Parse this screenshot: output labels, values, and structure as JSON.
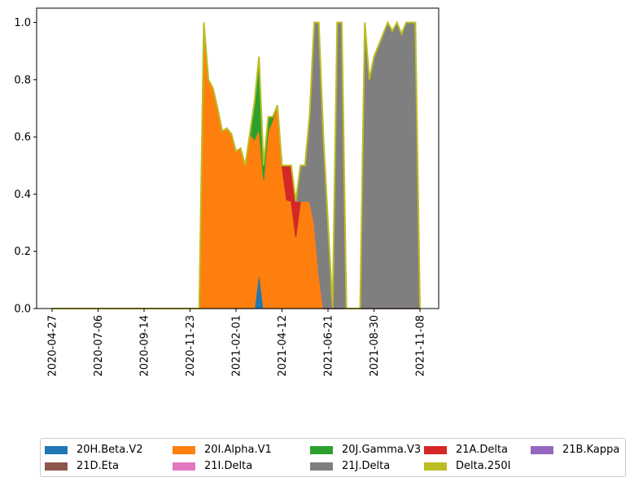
{
  "chart_data": {
    "type": "area",
    "stacked": true,
    "xlabel": "",
    "ylabel": "",
    "x_dates": [
      "2020-04-27",
      "2020-05-04",
      "2020-05-11",
      "2020-05-18",
      "2020-05-25",
      "2020-06-01",
      "2020-06-08",
      "2020-06-15",
      "2020-06-22",
      "2020-06-29",
      "2020-07-06",
      "2020-07-13",
      "2020-07-20",
      "2020-07-27",
      "2020-08-03",
      "2020-08-10",
      "2020-08-17",
      "2020-08-24",
      "2020-08-31",
      "2020-09-07",
      "2020-09-14",
      "2020-09-21",
      "2020-09-28",
      "2020-10-05",
      "2020-10-12",
      "2020-10-19",
      "2020-10-26",
      "2020-11-02",
      "2020-11-09",
      "2020-11-16",
      "2020-11-23",
      "2020-11-30",
      "2020-12-07",
      "2020-12-14",
      "2020-12-21",
      "2020-12-28",
      "2021-01-04",
      "2021-01-11",
      "2021-01-18",
      "2021-01-25",
      "2021-02-01",
      "2021-02-08",
      "2021-02-15",
      "2021-02-22",
      "2021-03-01",
      "2021-03-08",
      "2021-03-15",
      "2021-03-22",
      "2021-03-29",
      "2021-04-05",
      "2021-04-12",
      "2021-04-19",
      "2021-04-26",
      "2021-05-03",
      "2021-05-10",
      "2021-05-17",
      "2021-05-24",
      "2021-05-31",
      "2021-06-07",
      "2021-06-14",
      "2021-06-21",
      "2021-06-28",
      "2021-07-05",
      "2021-07-12",
      "2021-07-19",
      "2021-07-26",
      "2021-08-02",
      "2021-08-09",
      "2021-08-16",
      "2021-08-23",
      "2021-08-30",
      "2021-09-06",
      "2021-09-13",
      "2021-09-20",
      "2021-09-27",
      "2021-10-04",
      "2021-10-11",
      "2021-10-18",
      "2021-10-25",
      "2021-11-01",
      "2021-11-08"
    ],
    "series": [
      {
        "name": "20H.Beta.V2",
        "color": "#1f77b4",
        "values": [
          0,
          0,
          0,
          0,
          0,
          0,
          0,
          0,
          0,
          0,
          0,
          0,
          0,
          0,
          0,
          0,
          0,
          0,
          0,
          0,
          0,
          0,
          0,
          0,
          0,
          0,
          0,
          0,
          0,
          0,
          0,
          0,
          0,
          0,
          0,
          0,
          0,
          0,
          0,
          0,
          0,
          0,
          0,
          0,
          0,
          0.13,
          0,
          0,
          0,
          0,
          0,
          0,
          0,
          0,
          0,
          0,
          0,
          0,
          0,
          0,
          0,
          0,
          0,
          0,
          0,
          0,
          0,
          0,
          0,
          0,
          0,
          0,
          0,
          0,
          0,
          0,
          0,
          0,
          0,
          0,
          0
        ]
      },
      {
        "name": "20I.Alpha.V1",
        "color": "#ff7f0e",
        "values": [
          0,
          0,
          0,
          0,
          0,
          0,
          0,
          0,
          0,
          0,
          0,
          0,
          0,
          0,
          0,
          0,
          0,
          0,
          0,
          0,
          0,
          0,
          0,
          0,
          0,
          0,
          0,
          0,
          0,
          0,
          0,
          0,
          0,
          1.0,
          0.8,
          0.77,
          0.7,
          0.62,
          0.63,
          0.61,
          0.55,
          0.56,
          0.5,
          0.61,
          0.59,
          0.5,
          0.45,
          0.62,
          0.66,
          0.71,
          0.5,
          0.38,
          0.375,
          0.25,
          0.375,
          0.375,
          0.375,
          0.3,
          0.125,
          0,
          0,
          0,
          0,
          0,
          0,
          0,
          0,
          0,
          0,
          0,
          0,
          0,
          0,
          0,
          0,
          0,
          0,
          0,
          0,
          0,
          0
        ]
      },
      {
        "name": "20J.Gamma.V3",
        "color": "#2ca02c",
        "values": [
          0,
          0,
          0,
          0,
          0,
          0,
          0,
          0,
          0,
          0,
          0,
          0,
          0,
          0,
          0,
          0,
          0,
          0,
          0,
          0,
          0,
          0,
          0,
          0,
          0,
          0,
          0,
          0,
          0,
          0,
          0,
          0,
          0,
          0,
          0,
          0,
          0,
          0,
          0,
          0,
          0,
          0,
          0,
          0,
          0.13,
          0.25,
          0.05,
          0.05,
          0.01,
          0,
          0,
          0,
          0,
          0,
          0,
          0,
          0,
          0,
          0,
          0,
          0,
          0,
          0,
          0,
          0,
          0,
          0,
          0,
          0,
          0,
          0,
          0,
          0,
          0,
          0,
          0,
          0,
          0,
          0,
          0,
          0
        ]
      },
      {
        "name": "21A.Delta",
        "color": "#d62728",
        "values": [
          0,
          0,
          0,
          0,
          0,
          0,
          0,
          0,
          0,
          0,
          0,
          0,
          0,
          0,
          0,
          0,
          0,
          0,
          0,
          0,
          0,
          0,
          0,
          0,
          0,
          0,
          0,
          0,
          0,
          0,
          0,
          0,
          0,
          0,
          0,
          0,
          0,
          0,
          0,
          0,
          0,
          0,
          0,
          0,
          0,
          0,
          0,
          0,
          0,
          0,
          0.0,
          0.12,
          0.125,
          0.125,
          0,
          0,
          0,
          0,
          0,
          0,
          0,
          0,
          0,
          0,
          0,
          0,
          0,
          0,
          0,
          0,
          0,
          0,
          0,
          0,
          0,
          0,
          0,
          0,
          0,
          0,
          0
        ]
      },
      {
        "name": "21B.Kappa",
        "color": "#9467bd",
        "values": [
          0,
          0,
          0,
          0,
          0,
          0,
          0,
          0,
          0,
          0,
          0,
          0,
          0,
          0,
          0,
          0,
          0,
          0,
          0,
          0,
          0,
          0,
          0,
          0,
          0,
          0,
          0,
          0,
          0,
          0,
          0,
          0,
          0,
          0,
          0,
          0,
          0,
          0,
          0,
          0,
          0,
          0,
          0,
          0,
          0,
          0,
          0,
          0,
          0,
          0,
          0.0,
          0.0,
          0.0,
          0.0,
          0,
          0,
          0,
          0,
          0,
          0,
          0,
          0,
          0,
          0,
          0,
          0,
          0,
          0,
          0,
          0,
          0,
          0,
          0,
          0,
          0,
          0,
          0,
          0,
          0,
          0,
          0
        ]
      },
      {
        "name": "21D.Eta",
        "color": "#8c564b",
        "values": [
          0,
          0,
          0,
          0,
          0,
          0,
          0,
          0,
          0,
          0,
          0,
          0,
          0,
          0,
          0,
          0,
          0,
          0,
          0,
          0,
          0,
          0,
          0,
          0,
          0,
          0,
          0,
          0,
          0,
          0,
          0,
          0,
          0,
          0,
          0,
          0,
          0,
          0,
          0,
          0,
          0,
          0,
          0,
          0,
          0,
          0,
          0,
          0,
          0,
          0,
          0,
          0,
          0,
          0,
          0,
          0,
          0,
          0,
          0,
          0,
          0,
          0,
          0,
          0,
          0,
          0,
          0,
          0,
          0,
          0,
          0,
          0,
          0,
          0,
          0,
          0,
          0,
          0,
          0,
          0,
          0
        ]
      },
      {
        "name": "21I.Delta",
        "color": "#e377c2",
        "values": [
          0,
          0,
          0,
          0,
          0,
          0,
          0,
          0,
          0,
          0,
          0,
          0,
          0,
          0,
          0,
          0,
          0,
          0,
          0,
          0,
          0,
          0,
          0,
          0,
          0,
          0,
          0,
          0,
          0,
          0,
          0,
          0,
          0,
          0,
          0,
          0,
          0,
          0,
          0,
          0,
          0,
          0,
          0,
          0,
          0,
          0,
          0,
          0,
          0,
          0,
          0,
          0,
          0,
          0,
          0,
          0,
          0,
          0,
          0,
          0,
          0,
          0,
          0,
          0,
          0,
          0,
          0,
          0,
          0,
          0,
          0,
          0,
          0,
          0,
          0,
          0,
          0,
          0,
          0,
          0,
          0
        ]
      },
      {
        "name": "21J.Delta",
        "color": "#7f7f7f",
        "values": [
          0,
          0,
          0,
          0,
          0,
          0,
          0,
          0,
          0,
          0,
          0,
          0,
          0,
          0,
          0,
          0,
          0,
          0,
          0,
          0,
          0,
          0,
          0,
          0,
          0,
          0,
          0,
          0,
          0,
          0,
          0,
          0,
          0,
          0,
          0,
          0,
          0,
          0,
          0,
          0,
          0,
          0,
          0,
          0,
          0,
          0,
          0,
          0,
          0,
          0,
          0,
          0,
          0,
          0,
          0.125,
          0.125,
          0.3,
          0.7,
          0.875,
          0.6,
          0.3,
          0,
          1.0,
          1.0,
          0,
          0,
          0,
          0,
          1.0,
          0.8,
          0.88,
          0.92,
          0.96,
          1.0,
          0.97,
          1.0,
          0.96,
          1.0,
          1.0,
          1.0,
          0
        ]
      },
      {
        "name": "Delta.250I",
        "color": "#bcbd22",
        "values": [
          0,
          0,
          0,
          0,
          0,
          0,
          0,
          0,
          0,
          0,
          0,
          0,
          0,
          0,
          0,
          0,
          0,
          0,
          0,
          0,
          0,
          0,
          0,
          0,
          0,
          0,
          0,
          0,
          0,
          0,
          0,
          0,
          0,
          0,
          0,
          0,
          0,
          0,
          0,
          0,
          0,
          0,
          0,
          0,
          0,
          0,
          0,
          0,
          0,
          0,
          0,
          0,
          0,
          0,
          0,
          0,
          0,
          0,
          0,
          0,
          0,
          0,
          0,
          0,
          0,
          0,
          0,
          0,
          0,
          0,
          0,
          0,
          0,
          0,
          0,
          0,
          0,
          0,
          0,
          0,
          0
        ]
      }
    ],
    "x_ticks": [
      "2020-04-27",
      "2020-07-06",
      "2020-09-14",
      "2020-11-23",
      "2021-02-01",
      "2021-04-12",
      "2021-06-21",
      "2021-08-30",
      "2021-11-08"
    ],
    "y_ticks": [
      "0.0",
      "0.2",
      "0.4",
      "0.6",
      "0.8",
      "1.0"
    ],
    "ylim": [
      0,
      1.05
    ],
    "grid": false,
    "legend_placement": "below",
    "legend_columns": 5
  }
}
